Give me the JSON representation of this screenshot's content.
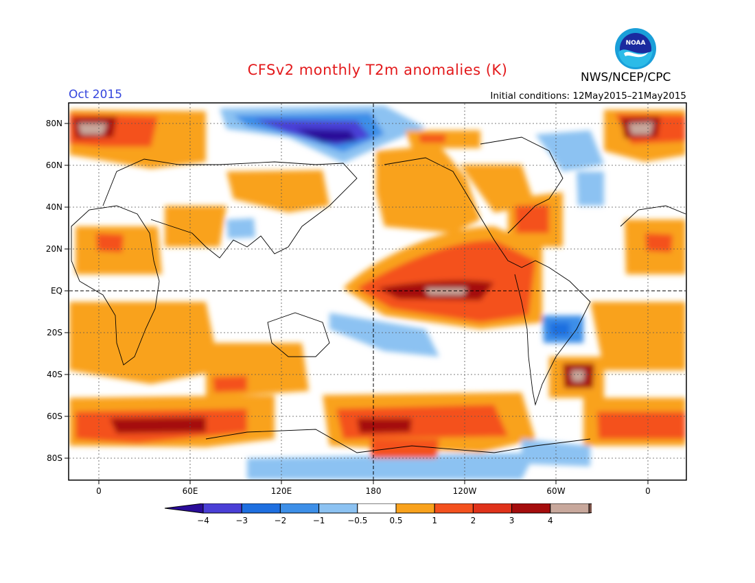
{
  "title": "CFSv2 monthly T2m anomalies (K)",
  "organization": "NWS/NCEP/CPC",
  "logo_text": "NOAA",
  "valid_month": "Oct 2015",
  "initial_conditions": "Initial conditions: 12May2015–21May2015",
  "colors": {
    "title": "#e31a1c",
    "month": "#3344dd",
    "cold4": "#2a0c99",
    "cold3": "#4a3fd6",
    "cold2": "#1e6fe0",
    "cold1": "#3d8fe8",
    "cold05": "#8cc2f2",
    "neutral": "#ffffff",
    "warm05": "#f9a21d",
    "warm1": "#f4511e",
    "warm2": "#e0321a",
    "warm3": "#a50d0d",
    "warm4": "#c8a89c",
    "warm5": "#7a5248"
  },
  "map": {
    "lat_ticks": [
      "80N",
      "60N",
      "40N",
      "20N",
      "EQ",
      "20S",
      "40S",
      "60S",
      "80S"
    ],
    "lon_ticks": [
      "0",
      "60E",
      "120E",
      "180",
      "120W",
      "60W",
      "0"
    ]
  },
  "colorbar": {
    "labels": [
      "−4",
      "−3",
      "−2",
      "−1",
      "−0.5",
      "0.5",
      "1",
      "2",
      "3",
      "4"
    ],
    "colors": [
      "#4a3fd6",
      "#1e6fe0",
      "#3d8fe8",
      "#8cc2f2",
      "#ffffff",
      "#f9a21d",
      "#f4511e",
      "#e0321a",
      "#a50d0d",
      "#c8a89c"
    ],
    "under_color": "#2a0c99",
    "over_color": "#7a5248"
  }
}
